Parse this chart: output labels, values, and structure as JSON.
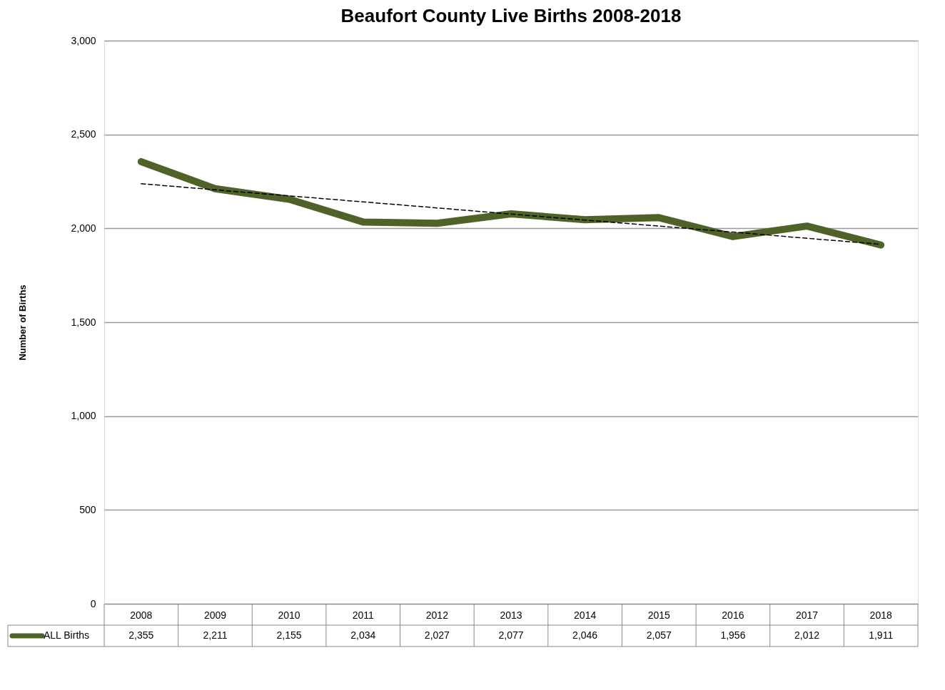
{
  "chart_data": {
    "type": "line",
    "title": "Beaufort County Live Births 2008-2018",
    "ylabel": "Number of Births",
    "categories": [
      "2008",
      "2009",
      "2010",
      "2011",
      "2012",
      "2013",
      "2014",
      "2015",
      "2016",
      "2017",
      "2018"
    ],
    "series": [
      {
        "name": "ALL Births",
        "color": "#4f6228",
        "values": [
          2355,
          2211,
          2155,
          2034,
          2027,
          2077,
          2046,
          2057,
          1956,
          2012,
          1911
        ],
        "value_labels": [
          "2,355",
          "2,211",
          "2,155",
          "2,034",
          "2,027",
          "2,077",
          "2,046",
          "2,057",
          "1,956",
          "2,012",
          "1,911"
        ]
      },
      {
        "type": "line",
        "color": "#000000",
        "line_style": "dashed",
        "values": [
          2238,
          2205,
          2173,
          2141,
          2109,
          2076,
          2044,
          2012,
          1980,
          1947,
          1915
        ]
      }
    ],
    "ylim": [
      0,
      3000
    ],
    "yticks": [
      0,
      500,
      {
        "value": 1000,
        "label": "1,000"
      },
      {
        "value": 1500,
        "label": "1,500"
      },
      {
        "value": 2000,
        "label": "2,000"
      },
      {
        "value": 2500,
        "label": "2,500"
      },
      {
        "value": 3000,
        "label": "3,000"
      }
    ],
    "grid": "y",
    "legend": "bottom",
    "marker": "none",
    "line_style": "solid"
  }
}
